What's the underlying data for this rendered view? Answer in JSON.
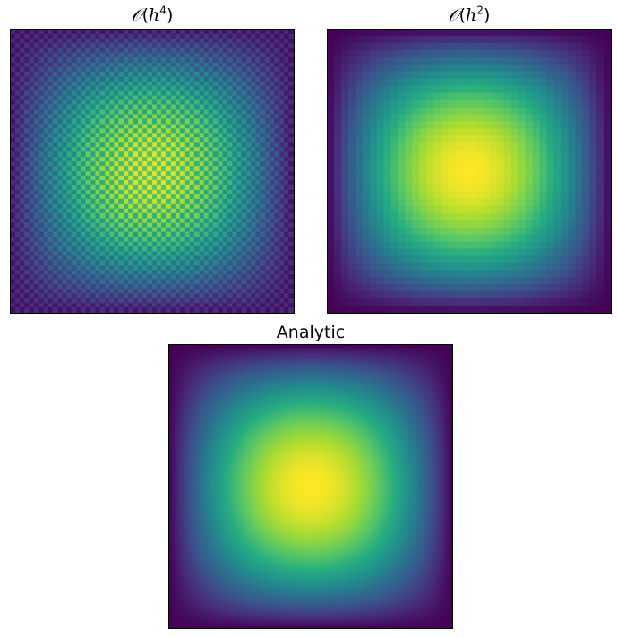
{
  "chart_data": [
    {
      "type": "heatmap",
      "title": "𝒪(h⁴)",
      "title_parts": {
        "order_symbol": "𝒪",
        "variable": "h",
        "exponent": "4"
      },
      "colormap": "viridis",
      "axes_visible": false,
      "grid": false,
      "pattern": "checkerboard oscillation superimposed on a smooth central peak",
      "value_range": [
        0,
        1
      ],
      "peak_location": [
        0.5,
        0.5
      ]
    },
    {
      "type": "heatmap",
      "title": "𝒪(h²)",
      "title_parts": {
        "order_symbol": "𝒪",
        "variable": "h",
        "exponent": "2"
      },
      "colormap": "viridis",
      "axes_visible": false,
      "grid": false,
      "pattern": "smooth pixelated central peak",
      "value_range": [
        0,
        1
      ],
      "peak_location": [
        0.5,
        0.5
      ]
    },
    {
      "type": "heatmap",
      "title": "Analytic",
      "colormap": "viridis",
      "axes_visible": false,
      "grid": false,
      "pattern": "smooth continuous central peak",
      "value_range": [
        0,
        1
      ],
      "peak_location": [
        0.5,
        0.5
      ]
    }
  ],
  "colors": {
    "viridis_low": "#440154",
    "viridis_mid": "#21918c",
    "viridis_high": "#fde725",
    "frame": "#000000",
    "background": "#ffffff"
  }
}
